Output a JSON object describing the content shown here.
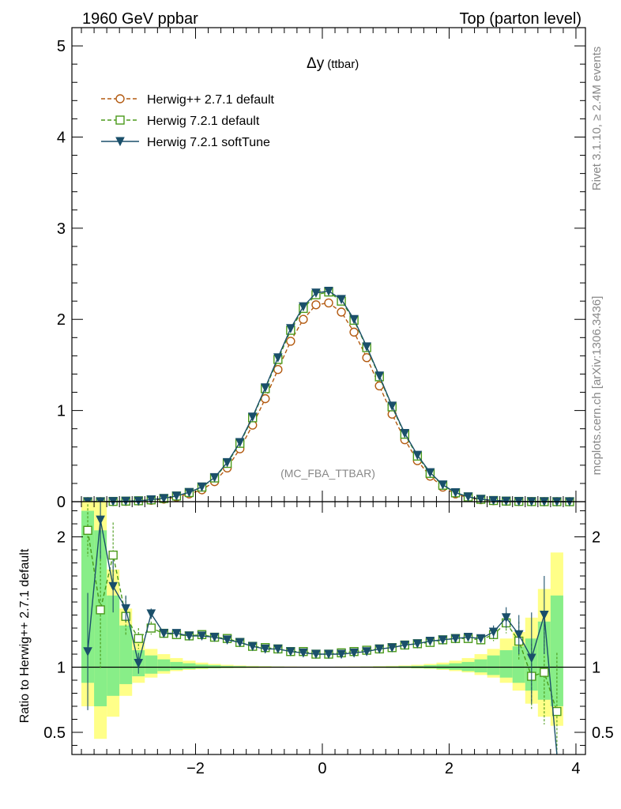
{
  "header": {
    "left": "1960 GeV ppbar",
    "right": "Top (parton level)"
  },
  "side_labels": {
    "rivet": "Rivet 3.1.10, ≥ 2.4M events",
    "mcplots": "mcplots.cern.ch [arXiv:1306.3436]"
  },
  "chart_data": [
    {
      "panel": "main",
      "type": "line",
      "title_main": "Δy",
      "title_sub": "(ttbar)",
      "watermark": "(MC_FBA_TTBAR)",
      "xlim": [
        -3.95,
        4.15
      ],
      "ylim": [
        0,
        5.2
      ],
      "xticks": [
        -2,
        0,
        2,
        4
      ],
      "yticks": [
        0,
        1,
        2,
        3,
        4,
        5
      ],
      "ytick_labels": [
        "0",
        "1",
        "2",
        "3",
        "4",
        "5"
      ],
      "legend_position": "top-left",
      "x": [
        -3.7,
        -3.5,
        -3.3,
        -3.1,
        -2.9,
        -2.7,
        -2.5,
        -2.3,
        -2.1,
        -1.9,
        -1.7,
        -1.5,
        -1.3,
        -1.1,
        -0.9,
        -0.7,
        -0.5,
        -0.3,
        -0.1,
        0.1,
        0.3,
        0.5,
        0.7,
        0.9,
        1.1,
        1.3,
        1.5,
        1.7,
        1.9,
        2.1,
        2.3,
        2.5,
        2.7,
        2.9,
        3.1,
        3.3,
        3.5,
        3.7,
        3.9
      ],
      "series": [
        {
          "name": "Herwig++ 2.7.1 default",
          "color": "#b35a10",
          "marker": "circle-open",
          "line": "dashed",
          "values": [
            0.0,
            0.0,
            0.002,
            0.004,
            0.008,
            0.015,
            0.028,
            0.05,
            0.085,
            0.13,
            0.22,
            0.37,
            0.58,
            0.84,
            1.13,
            1.45,
            1.76,
            2.0,
            2.16,
            2.18,
            2.08,
            1.86,
            1.58,
            1.27,
            0.96,
            0.68,
            0.45,
            0.28,
            0.16,
            0.085,
            0.045,
            0.022,
            0.011,
            0.005,
            0.0025,
            0.001,
            0.0005,
            0.0,
            0.0
          ]
        },
        {
          "name": "Herwig 7.2.1 default",
          "color": "#4a9a1a",
          "marker": "square-open",
          "line": "dashed",
          "values": [
            0.0,
            0.0,
            0.003,
            0.006,
            0.01,
            0.02,
            0.035,
            0.062,
            0.1,
            0.16,
            0.26,
            0.42,
            0.64,
            0.92,
            1.24,
            1.56,
            1.88,
            2.12,
            2.27,
            2.3,
            2.2,
            1.99,
            1.69,
            1.37,
            1.04,
            0.74,
            0.5,
            0.31,
            0.18,
            0.097,
            0.052,
            0.026,
            0.013,
            0.0065,
            0.0032,
            0.0012,
            0.0005,
            0.0002,
            0.0
          ]
        },
        {
          "name": "Herwig 7.2.1 softTune",
          "color": "#1a4f6a",
          "marker": "triangle-down-filled",
          "line": "solid",
          "values": [
            0.0,
            0.0,
            0.003,
            0.006,
            0.008,
            0.022,
            0.036,
            0.063,
            0.102,
            0.162,
            0.265,
            0.43,
            0.65,
            0.93,
            1.25,
            1.58,
            1.9,
            2.14,
            2.29,
            2.31,
            2.22,
            2.0,
            1.7,
            1.38,
            1.05,
            0.75,
            0.51,
            0.32,
            0.185,
            0.1,
            0.054,
            0.027,
            0.0135,
            0.0068,
            0.0033,
            0.0011,
            0.0007,
            0.0,
            0.0
          ]
        }
      ]
    },
    {
      "panel": "ratio",
      "type": "line",
      "ylabel": "Ratio to Herwig++ 2.7.1 default",
      "xlim": [
        -3.95,
        4.15
      ],
      "ylim": [
        0.33,
        2.27
      ],
      "xticks": [
        -2,
        0,
        2,
        4
      ],
      "xtick_labels": [
        "−2",
        "0",
        "2",
        "4"
      ],
      "yticks": [
        0.5,
        1,
        2
      ],
      "ytick_labels": [
        "0.5",
        "1",
        "2"
      ],
      "x": [
        -3.7,
        -3.5,
        -3.3,
        -3.1,
        -2.9,
        -2.7,
        -2.5,
        -2.3,
        -2.1,
        -1.9,
        -1.7,
        -1.5,
        -1.3,
        -1.1,
        -0.9,
        -0.7,
        -0.5,
        -0.3,
        -0.1,
        0.1,
        0.3,
        0.5,
        0.7,
        0.9,
        1.1,
        1.3,
        1.5,
        1.7,
        1.9,
        2.1,
        2.3,
        2.5,
        2.7,
        2.9,
        3.1,
        3.3,
        3.5,
        3.7
      ],
      "band_inner": [
        0.88,
        0.7,
        0.78,
        0.87,
        0.93,
        0.95,
        0.97,
        0.98,
        0.985,
        0.99,
        0.992,
        0.994,
        0.995,
        0.996,
        0.997,
        0.998,
        0.998,
        0.998,
        0.998,
        0.998,
        0.998,
        0.998,
        0.997,
        0.996,
        0.995,
        0.994,
        0.992,
        0.99,
        0.985,
        0.98,
        0.97,
        0.96,
        0.94,
        0.92,
        0.88,
        0.82,
        0.75,
        0.7
      ],
      "band_outer": [
        0.7,
        0.45,
        0.62,
        0.78,
        0.88,
        0.92,
        0.95,
        0.97,
        0.98,
        0.985,
        0.99,
        0.992,
        0.993,
        0.994,
        0.995,
        0.996,
        0.997,
        0.997,
        0.997,
        0.997,
        0.997,
        0.997,
        0.996,
        0.995,
        0.994,
        0.993,
        0.99,
        0.987,
        0.98,
        0.97,
        0.96,
        0.94,
        0.92,
        0.88,
        0.82,
        0.72,
        0.62,
        0.55
      ],
      "band_inner_up": [
        2.2,
        2.05,
        1.55,
        1.32,
        1.13,
        1.09,
        1.06,
        1.04,
        1.03,
        1.02,
        1.015,
        1.01,
        1.008,
        1.006,
        1.005,
        1.004,
        1.003,
        1.002,
        1.002,
        1.002,
        1.002,
        1.003,
        1.004,
        1.005,
        1.006,
        1.008,
        1.01,
        1.015,
        1.02,
        1.03,
        1.04,
        1.06,
        1.09,
        1.13,
        1.16,
        1.22,
        1.35,
        1.55
      ],
      "band_outer_up": [
        2.27,
        2.27,
        1.75,
        1.45,
        1.22,
        1.14,
        1.1,
        1.07,
        1.05,
        1.035,
        1.025,
        1.018,
        1.013,
        1.01,
        1.008,
        1.006,
        1.005,
        1.004,
        1.003,
        1.003,
        1.004,
        1.005,
        1.006,
        1.008,
        1.01,
        1.013,
        1.018,
        1.025,
        1.035,
        1.05,
        1.07,
        1.1,
        1.14,
        1.22,
        1.27,
        1.38,
        1.6,
        1.88
      ],
      "series": [
        {
          "name": "Herwig 7.2.1 default",
          "color": "#4a9a1a",
          "marker": "square-open",
          "line": "dashed",
          "values": [
            2.05,
            1.44,
            1.86,
            1.39,
            1.22,
            1.3,
            1.26,
            1.25,
            1.24,
            1.25,
            1.23,
            1.22,
            1.19,
            1.16,
            1.15,
            1.14,
            1.12,
            1.12,
            1.1,
            1.1,
            1.11,
            1.12,
            1.13,
            1.14,
            1.15,
            1.17,
            1.18,
            1.19,
            1.21,
            1.22,
            1.22,
            1.21,
            1.25,
            1.34,
            1.2,
            0.93,
            0.96,
            0.66
          ],
          "err": [
            0.2,
            0.45,
            0.25,
            0.15,
            0.08,
            0.05,
            0.03,
            0.02,
            0.015,
            0.01,
            0.01,
            0.008,
            0.006,
            0.005,
            0.004,
            0.004,
            0.003,
            0.003,
            0.003,
            0.003,
            0.003,
            0.003,
            0.004,
            0.004,
            0.005,
            0.006,
            0.008,
            0.01,
            0.01,
            0.015,
            0.02,
            0.03,
            0.05,
            0.08,
            0.15,
            0.25,
            0.4,
            0.45
          ]
        },
        {
          "name": "Herwig 7.2.1 softTune",
          "color": "#1a4f6a",
          "marker": "triangle-down-filled",
          "line": "solid",
          "values": [
            1.12,
            2.13,
            1.62,
            1.45,
            1.03,
            1.41,
            1.26,
            1.26,
            1.24,
            1.24,
            1.23,
            1.21,
            1.19,
            1.16,
            1.14,
            1.14,
            1.12,
            1.11,
            1.1,
            1.1,
            1.1,
            1.11,
            1.12,
            1.14,
            1.15,
            1.17,
            1.18,
            1.2,
            1.21,
            1.22,
            1.23,
            1.22,
            1.27,
            1.38,
            1.25,
            1.07,
            1.4,
            0.1
          ],
          "err": [
            0.45,
            0.3,
            0.2,
            0.1,
            0.08,
            0.04,
            0.03,
            0.02,
            0.015,
            0.01,
            0.01,
            0.008,
            0.006,
            0.005,
            0.004,
            0.004,
            0.003,
            0.003,
            0.003,
            0.003,
            0.003,
            0.003,
            0.004,
            0.004,
            0.005,
            0.006,
            0.008,
            0.01,
            0.01,
            0.015,
            0.02,
            0.03,
            0.05,
            0.08,
            0.15,
            0.35,
            0.3,
            0.0
          ]
        }
      ]
    }
  ]
}
